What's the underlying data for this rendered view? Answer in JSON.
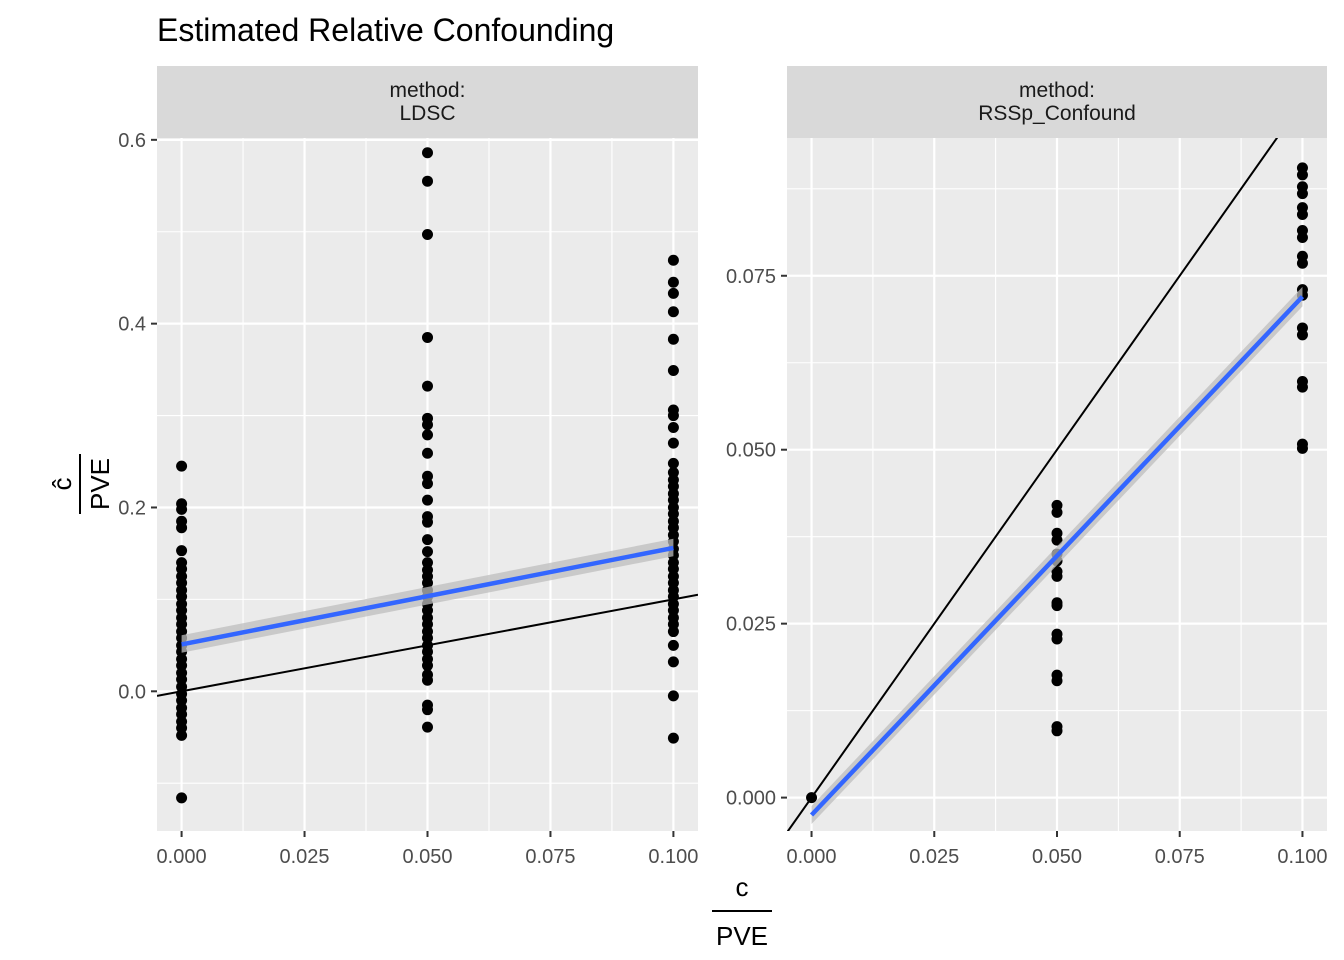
{
  "chart_data": {
    "type": "scatter",
    "title": "Estimated Relative Confounding",
    "xlabel": {
      "numerator": "c",
      "denominator": "PVE"
    },
    "ylabel": {
      "numerator": "ĉ",
      "denominator": "PVE"
    },
    "colors": {
      "points": "#000000",
      "smooth": "#3366FF",
      "ribbon": "#BEBEBE",
      "identity": "#000000",
      "panel": "#EBEBEB",
      "strip": "#D9D9D9",
      "grid": "#FFFFFF"
    },
    "identity_line": true,
    "panels": [
      {
        "strip_label": [
          "method:",
          "LDSC"
        ],
        "xlim": [
          -0.005,
          0.105
        ],
        "ylim": [
          -0.152,
          0.602
        ],
        "x_ticks": [
          0.0,
          0.025,
          0.05,
          0.075,
          0.1
        ],
        "x_tick_labels": [
          "0.000",
          "0.025",
          "0.050",
          "0.075",
          "0.100"
        ],
        "y_ticks": [
          0.0,
          0.2,
          0.4,
          0.6
        ],
        "y_tick_labels": [
          "0.0",
          "0.2",
          "0.4",
          "0.6"
        ],
        "smooth": {
          "x": [
            0.0,
            0.1
          ],
          "y": [
            0.051,
            0.156
          ],
          "se_lower": [
            0.042,
            0.147
          ],
          "se_upper": [
            0.061,
            0.166
          ]
        },
        "points": [
          {
            "x": 0.0,
            "y": 0.245
          },
          {
            "x": 0.0,
            "y": 0.204
          },
          {
            "x": 0.0,
            "y": 0.198
          },
          {
            "x": 0.0,
            "y": 0.185
          },
          {
            "x": 0.0,
            "y": 0.178
          },
          {
            "x": 0.0,
            "y": 0.153
          },
          {
            "x": 0.0,
            "y": 0.14
          },
          {
            "x": 0.0,
            "y": 0.133
          },
          {
            "x": 0.0,
            "y": 0.125
          },
          {
            "x": 0.0,
            "y": 0.118
          },
          {
            "x": 0.0,
            "y": 0.11
          },
          {
            "x": 0.0,
            "y": 0.103
          },
          {
            "x": 0.0,
            "y": 0.095
          },
          {
            "x": 0.0,
            "y": 0.088
          },
          {
            "x": 0.0,
            "y": 0.08
          },
          {
            "x": 0.0,
            "y": 0.073
          },
          {
            "x": 0.0,
            "y": 0.065
          },
          {
            "x": 0.0,
            "y": 0.058
          },
          {
            "x": 0.0,
            "y": 0.05
          },
          {
            "x": 0.0,
            "y": 0.043
          },
          {
            "x": 0.0,
            "y": 0.035
          },
          {
            "x": 0.0,
            "y": 0.028
          },
          {
            "x": 0.0,
            "y": 0.02
          },
          {
            "x": 0.0,
            "y": 0.013
          },
          {
            "x": 0.0,
            "y": 0.005
          },
          {
            "x": 0.0,
            "y": -0.003
          },
          {
            "x": 0.0,
            "y": -0.01
          },
          {
            "x": 0.0,
            "y": -0.018
          },
          {
            "x": 0.0,
            "y": -0.025
          },
          {
            "x": 0.0,
            "y": -0.033
          },
          {
            "x": 0.0,
            "y": -0.04
          },
          {
            "x": 0.0,
            "y": -0.048
          },
          {
            "x": 0.0,
            "y": -0.116
          },
          {
            "x": 0.05,
            "y": 0.586
          },
          {
            "x": 0.05,
            "y": 0.555
          },
          {
            "x": 0.05,
            "y": 0.497
          },
          {
            "x": 0.05,
            "y": 0.385
          },
          {
            "x": 0.05,
            "y": 0.332
          },
          {
            "x": 0.05,
            "y": 0.297
          },
          {
            "x": 0.05,
            "y": 0.29
          },
          {
            "x": 0.05,
            "y": 0.279
          },
          {
            "x": 0.05,
            "y": 0.259
          },
          {
            "x": 0.05,
            "y": 0.234
          },
          {
            "x": 0.05,
            "y": 0.226
          },
          {
            "x": 0.05,
            "y": 0.208
          },
          {
            "x": 0.05,
            "y": 0.19
          },
          {
            "x": 0.05,
            "y": 0.184
          },
          {
            "x": 0.05,
            "y": 0.165
          },
          {
            "x": 0.05,
            "y": 0.152
          },
          {
            "x": 0.05,
            "y": 0.14
          },
          {
            "x": 0.05,
            "y": 0.132
          },
          {
            "x": 0.05,
            "y": 0.125
          },
          {
            "x": 0.05,
            "y": 0.118
          },
          {
            "x": 0.05,
            "y": 0.11
          },
          {
            "x": 0.05,
            "y": 0.103
          },
          {
            "x": 0.05,
            "y": 0.095
          },
          {
            "x": 0.05,
            "y": 0.088
          },
          {
            "x": 0.05,
            "y": 0.08
          },
          {
            "x": 0.05,
            "y": 0.073
          },
          {
            "x": 0.05,
            "y": 0.065
          },
          {
            "x": 0.05,
            "y": 0.058
          },
          {
            "x": 0.05,
            "y": 0.05
          },
          {
            "x": 0.05,
            "y": 0.043
          },
          {
            "x": 0.05,
            "y": 0.035
          },
          {
            "x": 0.05,
            "y": 0.028
          },
          {
            "x": 0.05,
            "y": 0.018
          },
          {
            "x": 0.05,
            "y": 0.012
          },
          {
            "x": 0.05,
            "y": -0.015
          },
          {
            "x": 0.05,
            "y": -0.02
          },
          {
            "x": 0.05,
            "y": -0.039
          },
          {
            "x": 0.1,
            "y": 0.469
          },
          {
            "x": 0.1,
            "y": 0.445
          },
          {
            "x": 0.1,
            "y": 0.433
          },
          {
            "x": 0.1,
            "y": 0.413
          },
          {
            "x": 0.1,
            "y": 0.383
          },
          {
            "x": 0.1,
            "y": 0.349
          },
          {
            "x": 0.1,
            "y": 0.306
          },
          {
            "x": 0.1,
            "y": 0.3
          },
          {
            "x": 0.1,
            "y": 0.287
          },
          {
            "x": 0.1,
            "y": 0.27
          },
          {
            "x": 0.1,
            "y": 0.248
          },
          {
            "x": 0.1,
            "y": 0.238
          },
          {
            "x": 0.1,
            "y": 0.23
          },
          {
            "x": 0.1,
            "y": 0.223
          },
          {
            "x": 0.1,
            "y": 0.215
          },
          {
            "x": 0.1,
            "y": 0.208
          },
          {
            "x": 0.1,
            "y": 0.2
          },
          {
            "x": 0.1,
            "y": 0.193
          },
          {
            "x": 0.1,
            "y": 0.185
          },
          {
            "x": 0.1,
            "y": 0.178
          },
          {
            "x": 0.1,
            "y": 0.17
          },
          {
            "x": 0.1,
            "y": 0.163
          },
          {
            "x": 0.1,
            "y": 0.155
          },
          {
            "x": 0.1,
            "y": 0.148
          },
          {
            "x": 0.1,
            "y": 0.14
          },
          {
            "x": 0.1,
            "y": 0.133
          },
          {
            "x": 0.1,
            "y": 0.125
          },
          {
            "x": 0.1,
            "y": 0.118
          },
          {
            "x": 0.1,
            "y": 0.11
          },
          {
            "x": 0.1,
            "y": 0.103
          },
          {
            "x": 0.1,
            "y": 0.095
          },
          {
            "x": 0.1,
            "y": 0.088
          },
          {
            "x": 0.1,
            "y": 0.08
          },
          {
            "x": 0.1,
            "y": 0.073
          },
          {
            "x": 0.1,
            "y": 0.065
          },
          {
            "x": 0.1,
            "y": 0.05
          },
          {
            "x": 0.1,
            "y": 0.032
          },
          {
            "x": 0.1,
            "y": -0.005
          },
          {
            "x": 0.1,
            "y": -0.051
          }
        ]
      },
      {
        "strip_label": [
          "method:",
          "RSSp_Confound"
        ],
        "xlim": [
          -0.005,
          0.105
        ],
        "ylim": [
          -0.0048,
          0.0948
        ],
        "x_ticks": [
          0.0,
          0.025,
          0.05,
          0.075,
          0.1
        ],
        "x_tick_labels": [
          "0.000",
          "0.025",
          "0.050",
          "0.075",
          "0.100"
        ],
        "y_ticks": [
          0.0,
          0.025,
          0.05,
          0.075
        ],
        "y_tick_labels": [
          "0.000",
          "0.025",
          "0.050",
          "0.075"
        ],
        "smooth": {
          "x": [
            0.0,
            0.1
          ],
          "y": [
            -0.0025,
            0.072
          ],
          "se_lower": [
            -0.0038,
            0.0706
          ],
          "se_upper": [
            -0.0012,
            0.0734
          ]
        },
        "points": [
          {
            "x": 0.0,
            "y": 0.0
          },
          {
            "x": 0.05,
            "y": 0.042
          },
          {
            "x": 0.05,
            "y": 0.041
          },
          {
            "x": 0.05,
            "y": 0.038
          },
          {
            "x": 0.05,
            "y": 0.037
          },
          {
            "x": 0.05,
            "y": 0.035
          },
          {
            "x": 0.05,
            "y": 0.034
          },
          {
            "x": 0.05,
            "y": 0.0325
          },
          {
            "x": 0.05,
            "y": 0.0318
          },
          {
            "x": 0.05,
            "y": 0.028
          },
          {
            "x": 0.05,
            "y": 0.0276
          },
          {
            "x": 0.05,
            "y": 0.0235
          },
          {
            "x": 0.05,
            "y": 0.0228
          },
          {
            "x": 0.05,
            "y": 0.0176
          },
          {
            "x": 0.05,
            "y": 0.0168
          },
          {
            "x": 0.05,
            "y": 0.0102
          },
          {
            "x": 0.05,
            "y": 0.0096
          },
          {
            "x": 0.1,
            "y": 0.0905
          },
          {
            "x": 0.1,
            "y": 0.0895
          },
          {
            "x": 0.1,
            "y": 0.0878
          },
          {
            "x": 0.1,
            "y": 0.0868
          },
          {
            "x": 0.1,
            "y": 0.0848
          },
          {
            "x": 0.1,
            "y": 0.0838
          },
          {
            "x": 0.1,
            "y": 0.0815
          },
          {
            "x": 0.1,
            "y": 0.0805
          },
          {
            "x": 0.1,
            "y": 0.0778
          },
          {
            "x": 0.1,
            "y": 0.0768
          },
          {
            "x": 0.1,
            "y": 0.073
          },
          {
            "x": 0.1,
            "y": 0.0722
          },
          {
            "x": 0.1,
            "y": 0.0675
          },
          {
            "x": 0.1,
            "y": 0.0665
          },
          {
            "x": 0.1,
            "y": 0.0598
          },
          {
            "x": 0.1,
            "y": 0.059
          },
          {
            "x": 0.1,
            "y": 0.0508
          },
          {
            "x": 0.1,
            "y": 0.0502
          }
        ]
      }
    ]
  }
}
